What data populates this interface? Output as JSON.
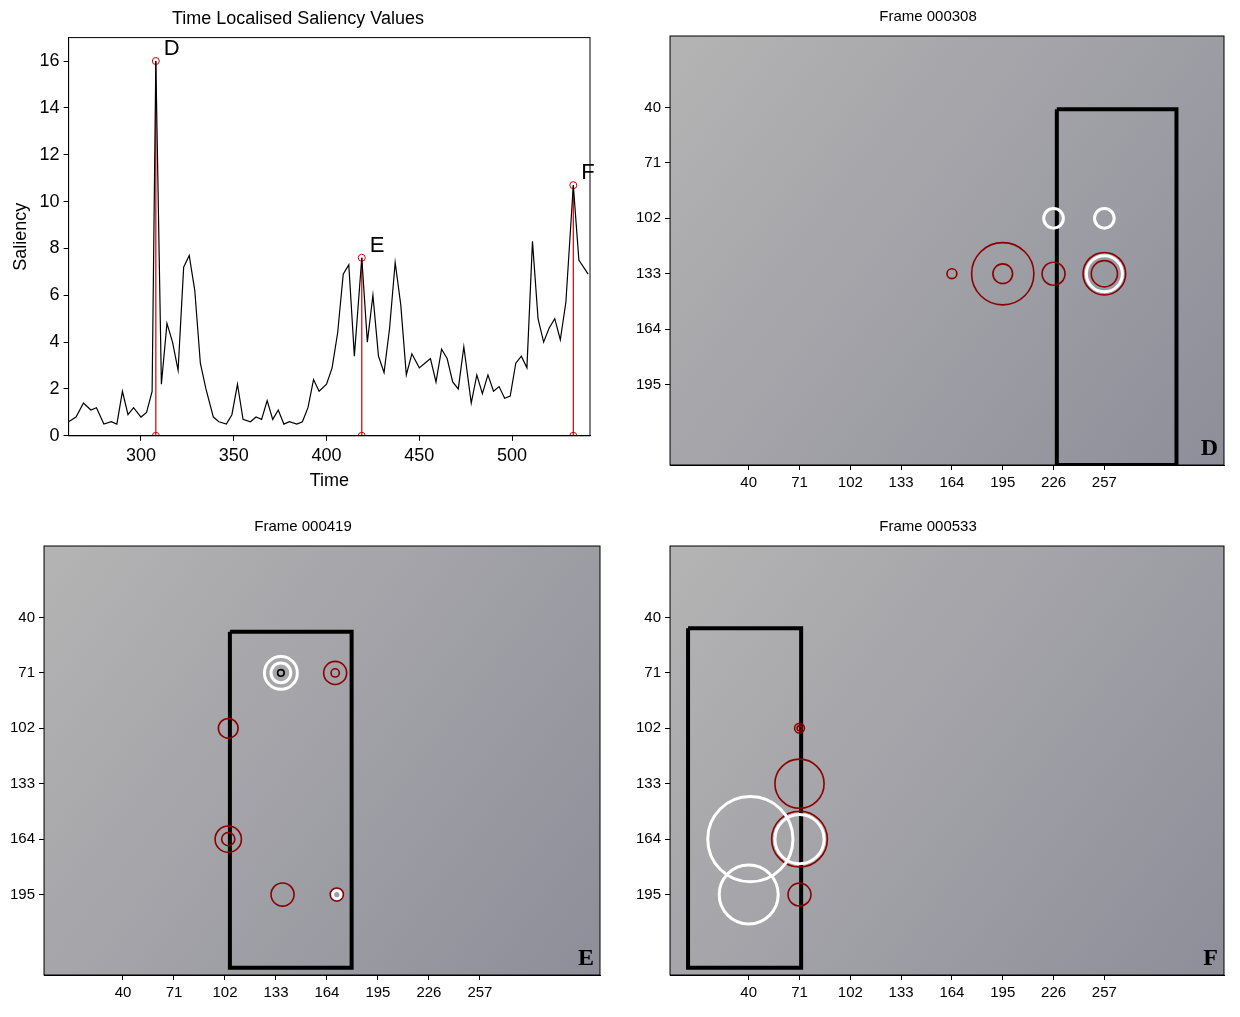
{
  "chart_data": [
    {
      "type": "line",
      "title": "Time Localised Saliency Values",
      "x_label": "Time",
      "y_label": "Saliency",
      "x": [
        261,
        265,
        269,
        273,
        276,
        280,
        284,
        287,
        290,
        293,
        296,
        300,
        303,
        306,
        308,
        311,
        314,
        317,
        320,
        323,
        326,
        329,
        332,
        335,
        339,
        342,
        346,
        349,
        352,
        355,
        359,
        362,
        365,
        368,
        371,
        374,
        377,
        380,
        384,
        387,
        390,
        393,
        396,
        400,
        403,
        406,
        409,
        412,
        415,
        419,
        422,
        425,
        428,
        431,
        434,
        437,
        440,
        443,
        446,
        450,
        453,
        456,
        459,
        462,
        465,
        468,
        471,
        474,
        478,
        481,
        484,
        487,
        490,
        493,
        496,
        499,
        502,
        505,
        508,
        511,
        514,
        517,
        520,
        523,
        526,
        529,
        533,
        536,
        541
      ],
      "values": [
        0.6,
        0.8,
        1.4,
        1.1,
        1.2,
        0.5,
        0.6,
        0.5,
        1.9,
        0.9,
        1.2,
        0.8,
        1.0,
        1.9,
        16,
        2.2,
        4.8,
        4.0,
        2.8,
        7.2,
        7.7,
        6.2,
        3.1,
        2.0,
        0.8,
        0.6,
        0.5,
        0.9,
        2.2,
        0.7,
        0.6,
        0.8,
        0.7,
        1.5,
        0.7,
        1.1,
        0.5,
        0.6,
        0.5,
        0.6,
        1.2,
        2.4,
        1.9,
        2.2,
        2.9,
        4.4,
        6.9,
        7.3,
        3.4,
        7.6,
        4.0,
        6.0,
        3.4,
        2.7,
        4.6,
        7.4,
        5.6,
        2.6,
        3.5,
        2.9,
        3.1,
        3.3,
        2.3,
        3.7,
        3.3,
        2.3,
        2.0,
        3.8,
        1.4,
        2.6,
        1.8,
        2.6,
        1.9,
        2.1,
        1.6,
        1.7,
        3.1,
        3.4,
        2.9,
        8.3,
        5.0,
        4.0,
        4.6,
        5.0,
        4.1,
        5.7,
        10.7,
        7.5,
        6.9
      ],
      "color": "#000000",
      "xlim": [
        261,
        542
      ],
      "ylim": [
        0,
        17
      ],
      "xticks": [
        300,
        350,
        400,
        450,
        500
      ],
      "yticks": [
        0,
        2,
        4,
        6,
        8,
        10,
        12,
        14,
        16
      ],
      "grid": false,
      "annotations": [
        {
          "label": "D",
          "x": 308,
          "y": 16,
          "color": "#cc0000"
        },
        {
          "label": "E",
          "x": 419,
          "y": 7.6,
          "color": "#cc0000"
        },
        {
          "label": "F",
          "x": 533,
          "y": 10.7,
          "color": "#cc0000"
        }
      ]
    },
    {
      "type": "image",
      "title": "Frame 000308",
      "panel_label": "D",
      "xlim": [
        -8,
        330
      ],
      "ylim": [
        240,
        0
      ],
      "xticks": [
        40,
        71,
        102,
        133,
        164,
        195,
        226,
        257
      ],
      "yticks": [
        40,
        71,
        102,
        133,
        164,
        195
      ],
      "grid": false,
      "boxes": [
        {
          "x": [
            228,
            301
          ],
          "y": [
            41,
            240
          ],
          "color": "#000000"
        }
      ],
      "circles": [
        {
          "x": 164,
          "y": 133,
          "r": 3,
          "color": "#8b0000"
        },
        {
          "x": 195,
          "y": 133,
          "r": 19,
          "color": "#8b0000"
        },
        {
          "x": 195,
          "y": 133,
          "r": 6,
          "color": "#8b0000"
        },
        {
          "x": 226,
          "y": 133,
          "r": 7,
          "color": "#8b0000"
        },
        {
          "x": 226,
          "y": 102,
          "r": 6,
          "color": "#ffffff"
        },
        {
          "x": 257,
          "y": 102,
          "r": 6,
          "color": "#ffffff"
        },
        {
          "x": 257,
          "y": 133,
          "r": 13,
          "color": "#8b0000"
        },
        {
          "x": 257,
          "y": 133,
          "r": 11,
          "color": "#ffffff"
        },
        {
          "x": 257,
          "y": 133,
          "r": 8,
          "color": "#8b0000"
        }
      ]
    },
    {
      "type": "image",
      "title": "Frame 000419",
      "panel_label": "E",
      "xlim": [
        -8,
        330
      ],
      "ylim": [
        240,
        0
      ],
      "xticks": [
        40,
        71,
        102,
        133,
        164,
        195,
        226,
        257
      ],
      "yticks": [
        40,
        71,
        102,
        133,
        164,
        195
      ],
      "grid": false,
      "boxes": [
        {
          "x": [
            105,
            179
          ],
          "y": [
            48,
            236
          ],
          "color": "#000000"
        }
      ],
      "circles": [
        {
          "x": 136,
          "y": 71,
          "r": 10,
          "color": "#ffffff"
        },
        {
          "x": 136,
          "y": 71,
          "r": 6,
          "color": "#ffffff"
        },
        {
          "x": 136,
          "y": 71,
          "r": 2,
          "color": "#000000"
        },
        {
          "x": 169,
          "y": 71,
          "r": 7,
          "color": "#8b0000"
        },
        {
          "x": 169,
          "y": 71,
          "r": 2.5,
          "color": "#8b0000"
        },
        {
          "x": 104,
          "y": 102,
          "r": 6,
          "color": "#8b0000"
        },
        {
          "x": 104,
          "y": 164,
          "r": 8,
          "color": "#8b0000"
        },
        {
          "x": 104,
          "y": 164,
          "r": 4,
          "color": "#8b0000"
        },
        {
          "x": 137,
          "y": 195,
          "r": 7,
          "color": "#8b0000"
        },
        {
          "x": 170,
          "y": 195,
          "r": 4,
          "color": "#8b0000"
        },
        {
          "x": 170,
          "y": 195,
          "r": 2.5,
          "color": "#ffffff"
        }
      ]
    },
    {
      "type": "image",
      "title": "Frame 000533",
      "panel_label": "F",
      "xlim": [
        -8,
        330
      ],
      "ylim": [
        240,
        0
      ],
      "xticks": [
        40,
        71,
        102,
        133,
        164,
        195,
        226,
        257
      ],
      "yticks": [
        40,
        71,
        102,
        133,
        164,
        195
      ],
      "grid": false,
      "boxes": [
        {
          "x": [
            3,
            72
          ],
          "y": [
            46,
            236
          ],
          "color": "#000000"
        }
      ],
      "circles": [
        {
          "x": 71,
          "y": 102,
          "r": 3,
          "color": "#8b0000"
        },
        {
          "x": 71,
          "y": 102,
          "r": 1.5,
          "color": "#8b0000"
        },
        {
          "x": 71,
          "y": 133,
          "r": 15,
          "color": "#8b0000"
        },
        {
          "x": 71,
          "y": 164,
          "r": 17,
          "color": "#8b0000"
        },
        {
          "x": 71,
          "y": 164,
          "r": 15,
          "color": "#ffffff"
        },
        {
          "x": 71,
          "y": 195,
          "r": 7,
          "color": "#8b0000"
        },
        {
          "x": 41,
          "y": 164,
          "r": 26,
          "color": "#ffffff"
        },
        {
          "x": 40,
          "y": 195,
          "r": 18,
          "color": "#ffffff"
        }
      ]
    }
  ]
}
